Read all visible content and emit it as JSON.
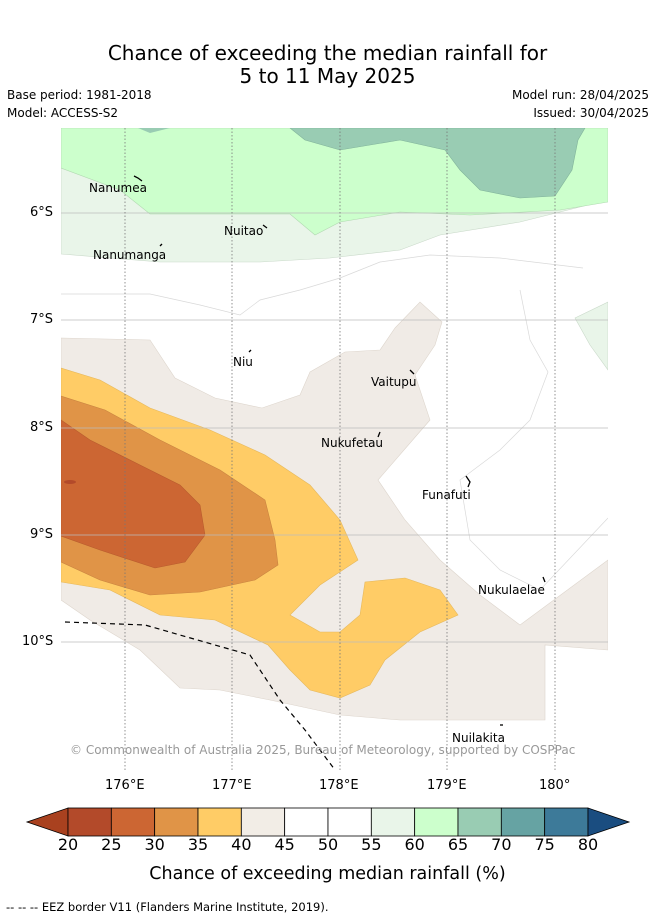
{
  "title_line1": "Chance of exceeding the median rainfall for",
  "title_line2": "5 to 11 May 2025",
  "base_period": "Base period: 1981-2018",
  "model": "Model: ACCESS-S2",
  "model_run": "Model run: 28/04/2025",
  "issued": "Issued: 30/04/2025",
  "lat_labels": [
    "6°S",
    "7°S",
    "8°S",
    "9°S",
    "10°S"
  ],
  "lon_labels": [
    "176°E",
    "177°E",
    "178°E",
    "179°E",
    "180°"
  ],
  "islands": {
    "nanumea": "Nanumea",
    "nuitao": "Nuitao",
    "nanumanga": "Nanumanga",
    "niu": "Niu",
    "vaitupu": "Vaitupu",
    "nukufetau": "Nukufetau",
    "funafuti": "Funafuti",
    "nukulaelae": "Nukulaelae",
    "nuilakita": "Nuilakita"
  },
  "copyright": "© Commonwealth of Australia 2025, Bureau of Meteorology, supported by COSPPac",
  "colorbar": {
    "ticks": [
      "20",
      "25",
      "30",
      "35",
      "40",
      "45",
      "50",
      "55",
      "60",
      "65",
      "70",
      "75",
      "80"
    ],
    "colors": [
      "#a9411f",
      "#b34a2a",
      "#cc6633",
      "#e09447",
      "#ffcc66",
      "#f2ede6",
      "#ffffff",
      "#ffffff",
      "#e9f5e9",
      "#ccffcc",
      "#99ccb3",
      "#66a3a3",
      "#3d7a99",
      "#1a4d80"
    ],
    "label": "Chance of exceeding median rainfall (%)"
  },
  "footnote": "--  --  -- EEZ border V11 (Flanders Marine Institute, 2019)."
}
